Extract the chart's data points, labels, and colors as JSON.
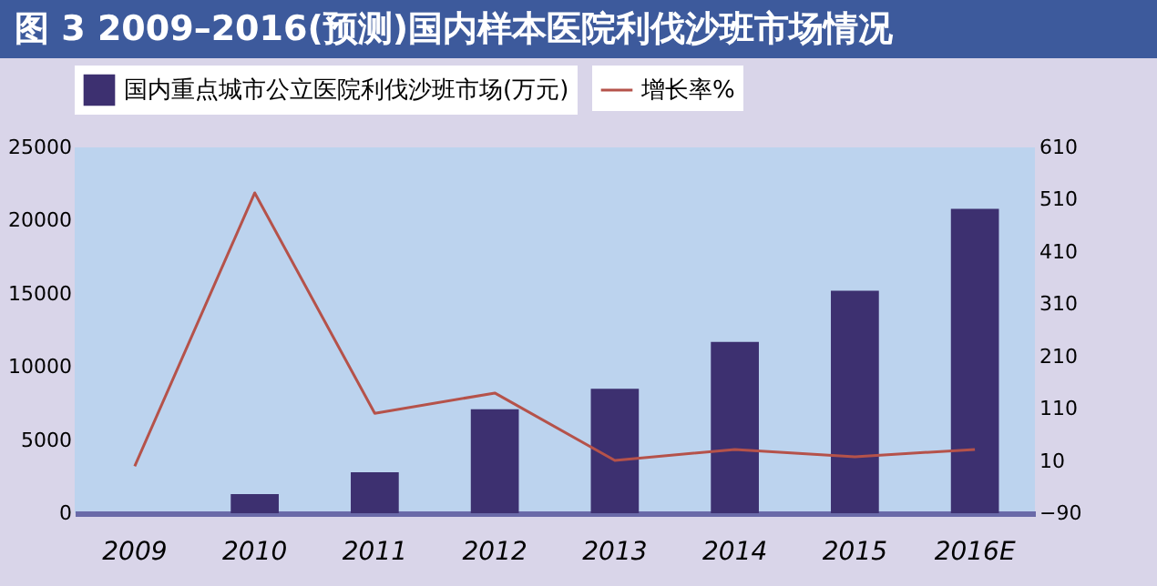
{
  "chart_data": {
    "type": "bar",
    "title": "图 3 2009–2016(预测)国内样本医院利伐沙班市场情况",
    "categories": [
      "2009",
      "2010",
      "2011",
      "2012",
      "2013",
      "2014",
      "2015",
      "2016E"
    ],
    "series": [
      {
        "name": "国内重点城市公立医院利伐沙班市场(万元)",
        "color": "#3d3070",
        "values": [
          null,
          1300,
          2800,
          7100,
          8500,
          11700,
          15200,
          20800
        ]
      },
      {
        "name": "增长率%",
        "type": "line",
        "axis": "y2",
        "color": "#b5524a",
        "values": [
          0,
          523,
          101,
          140,
          11,
          32,
          18,
          32
        ]
      }
    ],
    "ylim": [
      0,
      25000
    ],
    "yticks": [
      0,
      5000,
      10000,
      15000,
      20000,
      25000
    ],
    "y2lim": [
      -90,
      610
    ],
    "y2ticks": [
      -90,
      10,
      110,
      210,
      310,
      410,
      510,
      610
    ],
    "grid": false,
    "legend": "top"
  }
}
